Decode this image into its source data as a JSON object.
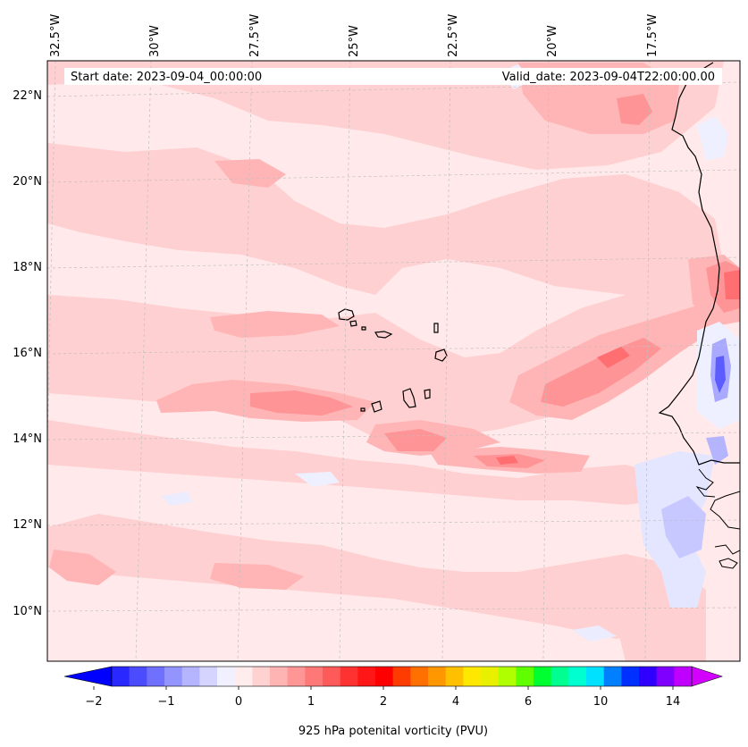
{
  "annotations": {
    "start_date": "Start date: 2023-09-04_00:00:00",
    "valid_date": "Valid_date: 2023-09-04T22:00:00.00"
  },
  "axes": {
    "lon_labels": [
      "32.5°W",
      "30°W",
      "27.5°W",
      "25°W",
      "22.5°W",
      "20°W",
      "17.5°W"
    ],
    "lat_labels": [
      "22°N",
      "20°N",
      "18°N",
      "16°N",
      "14°N",
      "12°N",
      "10°N"
    ]
  },
  "colorbar": {
    "label": "925 hPa potenital vorticity (PVU)",
    "tick_labels": [
      "−2",
      "−1",
      "0",
      "1",
      "2",
      "4",
      "6",
      "10",
      "14"
    ],
    "colors": [
      "#0000ff",
      "#2828ff",
      "#4c4cff",
      "#7070ff",
      "#9494ff",
      "#b4b4ff",
      "#d4d4ff",
      "#f0f0ff",
      "#ffecec",
      "#ffd2d2",
      "#ffb4b4",
      "#ff9696",
      "#ff7878",
      "#ff5a5a",
      "#ff3232",
      "#ff1616",
      "#ff0000",
      "#ff3c00",
      "#ff7000",
      "#ff9800",
      "#ffc000",
      "#ffe800",
      "#e8f000",
      "#b0ff00",
      "#60ff00",
      "#00ff30",
      "#00ff90",
      "#00ffd0",
      "#00e0ff",
      "#0080ff",
      "#0030ff",
      "#3000ff",
      "#8000ff",
      "#c000ff",
      "#e000ff"
    ]
  },
  "chart_data": {
    "type": "map",
    "title": "925 hPa potenital vorticity (PVU)",
    "region": "Eastern tropical Atlantic, Cape Verde Islands and West African coast",
    "lon_range": [
      -33,
      -16
    ],
    "lat_range": [
      9,
      23
    ],
    "colorbar_range": [
      -2,
      16
    ],
    "colorbar_ticks": [
      -2,
      -1,
      0,
      1,
      2,
      4,
      6,
      10,
      14
    ]
  }
}
